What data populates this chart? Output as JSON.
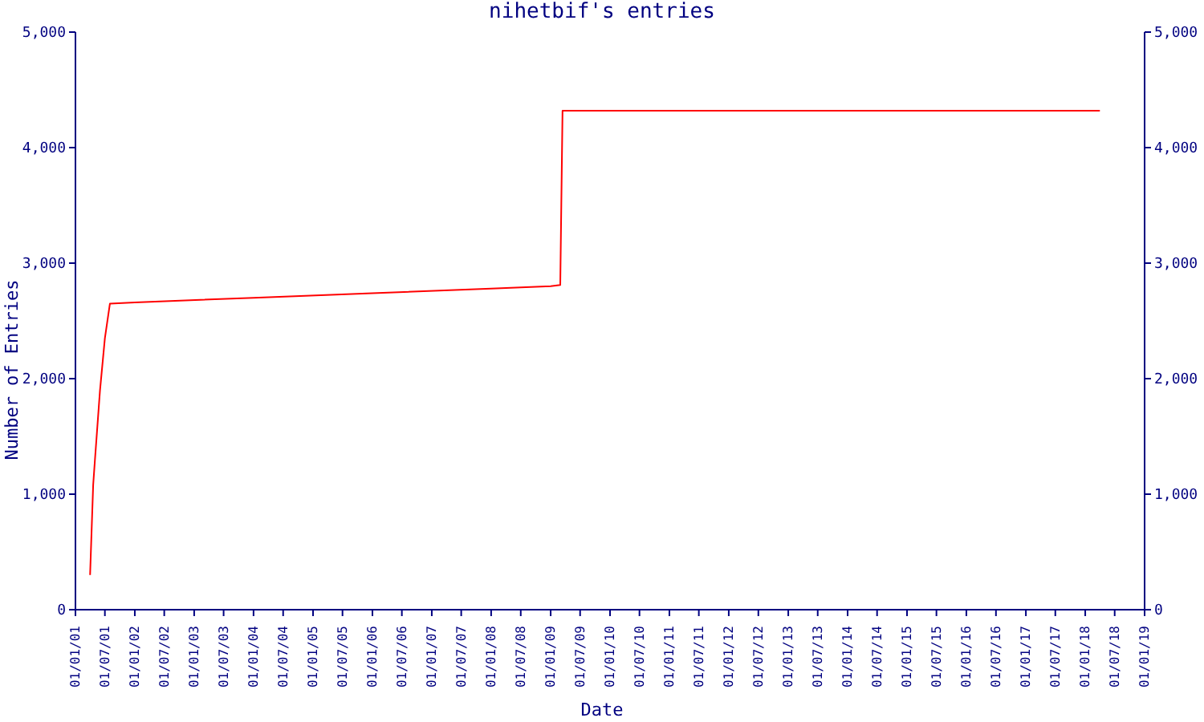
{
  "chart_data": {
    "type": "line",
    "title": "nihetbif's entries",
    "xlabel": "Date",
    "ylabel": "Number of Entries",
    "x": [
      "2001-04-01",
      "2001-04-10",
      "2001-04-20",
      "2001-05-01",
      "2001-06-01",
      "2001-07-01",
      "2001-08-01",
      "2002-01-01",
      "2004-01-01",
      "2006-01-01",
      "2008-01-01",
      "2009-01-01",
      "2009-03-01",
      "2009-03-15",
      "2018-04-01"
    ],
    "series": [
      {
        "color": "#ff0000",
        "values": [
          300,
          670,
          1080,
          1300,
          1900,
          2350,
          2650,
          2660,
          2700,
          2740,
          2780,
          2800,
          2810,
          4320,
          4320
        ]
      }
    ],
    "xlim": [
      "2001-01-01",
      "2019-01-01"
    ],
    "xticks": [
      {
        "value": "2001-01-01",
        "label": "01/01/01"
      },
      {
        "value": "2001-07-01",
        "label": "01/07/01"
      },
      {
        "value": "2002-01-01",
        "label": "01/01/02"
      },
      {
        "value": "2002-07-01",
        "label": "01/07/02"
      },
      {
        "value": "2003-01-01",
        "label": "01/01/03"
      },
      {
        "value": "2003-07-01",
        "label": "01/07/03"
      },
      {
        "value": "2004-01-01",
        "label": "01/01/04"
      },
      {
        "value": "2004-07-01",
        "label": "01/07/04"
      },
      {
        "value": "2005-01-01",
        "label": "01/01/05"
      },
      {
        "value": "2005-07-01",
        "label": "01/07/05"
      },
      {
        "value": "2006-01-01",
        "label": "01/01/06"
      },
      {
        "value": "2006-07-01",
        "label": "01/07/06"
      },
      {
        "value": "2007-01-01",
        "label": "01/01/07"
      },
      {
        "value": "2007-07-01",
        "label": "01/07/07"
      },
      {
        "value": "2008-01-01",
        "label": "01/01/08"
      },
      {
        "value": "2008-07-01",
        "label": "01/07/08"
      },
      {
        "value": "2009-01-01",
        "label": "01/01/09"
      },
      {
        "value": "2009-07-01",
        "label": "01/07/09"
      },
      {
        "value": "2010-01-01",
        "label": "01/01/10"
      },
      {
        "value": "2010-07-01",
        "label": "01/07/10"
      },
      {
        "value": "2011-01-01",
        "label": "01/01/11"
      },
      {
        "value": "2011-07-01",
        "label": "01/07/11"
      },
      {
        "value": "2012-01-01",
        "label": "01/01/12"
      },
      {
        "value": "2012-07-01",
        "label": "01/07/12"
      },
      {
        "value": "2013-01-01",
        "label": "01/01/13"
      },
      {
        "value": "2013-07-01",
        "label": "01/07/13"
      },
      {
        "value": "2014-01-01",
        "label": "01/01/14"
      },
      {
        "value": "2014-07-01",
        "label": "01/07/14"
      },
      {
        "value": "2015-01-01",
        "label": "01/01/15"
      },
      {
        "value": "2015-07-01",
        "label": "01/07/15"
      },
      {
        "value": "2016-01-01",
        "label": "01/01/16"
      },
      {
        "value": "2016-07-01",
        "label": "01/07/16"
      },
      {
        "value": "2017-01-01",
        "label": "01/01/17"
      },
      {
        "value": "2017-07-01",
        "label": "01/07/17"
      },
      {
        "value": "2018-01-01",
        "label": "01/01/18"
      },
      {
        "value": "2018-07-01",
        "label": "01/07/18"
      },
      {
        "value": "2019-01-01",
        "label": "01/01/19"
      }
    ],
    "ylim": [
      0,
      5000
    ],
    "yticks": [
      0,
      {
        "value": 1000,
        "label": "1,000"
      },
      {
        "value": 2000,
        "label": "2,000"
      },
      {
        "value": 3000,
        "label": "3,000"
      },
      {
        "value": 4000,
        "label": "4,000"
      },
      {
        "value": 5000,
        "label": "5,000"
      }
    ],
    "y2lim": [
      0,
      5000
    ],
    "y2ticks": [
      0,
      {
        "value": 1000,
        "label": "1,000"
      },
      {
        "value": 2000,
        "label": "2,000"
      },
      {
        "value": 3000,
        "label": "3,000"
      },
      {
        "value": 4000,
        "label": "4,000"
      },
      {
        "value": 5000,
        "label": "5,000"
      }
    ],
    "grid": false,
    "legend": false,
    "marker": "none",
    "line_style": "solid"
  }
}
